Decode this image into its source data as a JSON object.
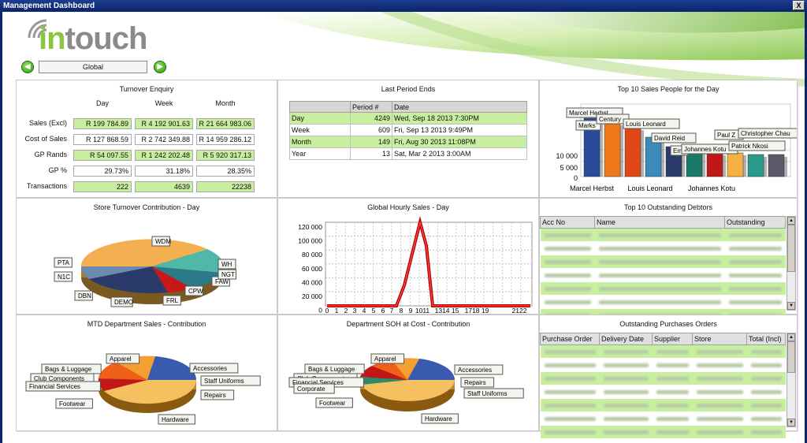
{
  "window": {
    "title": "Management Dashboard",
    "close_label": "X"
  },
  "logo": {
    "text_in": "in",
    "text_touch": "touch"
  },
  "nav": {
    "scope": "Global",
    "prev_icon": "arrow-left-icon",
    "next_icon": "arrow-right-icon"
  },
  "turnover": {
    "title": "Turnover Enquiry",
    "columns": [
      "Day",
      "Week",
      "Month"
    ],
    "rows": [
      {
        "label": "Sales (Excl)",
        "values": [
          "R 199 784.89",
          "R 4 192 901.63",
          "R 21 664 983.06"
        ],
        "style": "g"
      },
      {
        "label": "Cost of Sales",
        "values": [
          "R 127 868.59",
          "R 2 742 349.88",
          "R 14 959 286.12"
        ],
        "style": "w"
      },
      {
        "label": "GP Rands",
        "values": [
          "R 54 097.55",
          "R 1 242 202.48",
          "R 5 920 317.13"
        ],
        "style": "g"
      },
      {
        "label": "GP %",
        "values": [
          "29.73%",
          "31.18%",
          "28.35%"
        ],
        "style": "w"
      },
      {
        "label": "Transactions",
        "values": [
          "222",
          "4639",
          "22238"
        ],
        "style": "g"
      }
    ]
  },
  "last_period": {
    "title": "Last Period Ends",
    "headers": [
      "",
      "Period #",
      "Date"
    ],
    "rows": [
      {
        "name": "Day",
        "period": "4249",
        "date": "Wed, Sep 18 2013  7:30PM"
      },
      {
        "name": "Week",
        "period": "609",
        "date": "Fri, Sep 13 2013  9:49PM"
      },
      {
        "name": "Month",
        "period": "149",
        "date": "Fri, Aug 30 2013 11:08PM"
      },
      {
        "name": "Year",
        "period": "13",
        "date": "Sat, Mar  2 2013  3:00AM"
      }
    ]
  },
  "top_sales": {
    "title": "Top 10 Sales People for the Day",
    "labels": [
      "Marcel Herbst",
      "Marks",
      "Century",
      "Louis Leonard",
      "David Reid",
      "Ema",
      "Johannes Kotu",
      "Paul Z",
      "Christopher Chau",
      "Patrick Nkosi"
    ],
    "xlabels": [
      "Marcel Herbst",
      "Louis Leonard",
      "Johannes Kotu"
    ],
    "ticks": [
      "10 000",
      "5 000",
      "0"
    ]
  },
  "store_turnover": {
    "title": "Store Turnover Contribution - Day",
    "labels": [
      "WDM",
      "PTA",
      "N1C",
      "DBN",
      "DEMO",
      "FRL",
      "CPW",
      "FAW",
      "NGT",
      "WH"
    ]
  },
  "hourly": {
    "title": "Global Hourly Sales -  Day",
    "yticks": [
      "120 000",
      "100 000",
      "80 000",
      "60 000",
      "40 000",
      "20 000",
      "0"
    ],
    "xticks": [
      "0",
      "1",
      "2",
      "3",
      "4",
      "5",
      "6",
      "7",
      "8",
      "9",
      "1011",
      "1314 15",
      "1718 19",
      "2122"
    ]
  },
  "debtors": {
    "title": "Top 10 Outstanding Debtors",
    "headers": [
      "Acc No",
      "Name",
      "Outstanding"
    ]
  },
  "purchases": {
    "title": "Outstanding Purchases Orders",
    "headers": [
      "Purchase Order",
      "Delivery Date",
      "Supplier",
      "Store",
      "Total (Incl)"
    ]
  },
  "mtd_dept": {
    "title": "MTD Department Sales - Contribution",
    "labels": [
      "Apparel",
      "Bags & Luggage",
      "Club Components",
      "Financial Services",
      "Footwear",
      "Accessories",
      "Staff Uniforms",
      "Repairs",
      "Hardware"
    ]
  },
  "soh_dept": {
    "title": "Department SOH  at Cost - Contribution",
    "labels": [
      "Apparel",
      "Bags & Luggage",
      "Club Components",
      "Financial Services",
      "Corporate",
      "Footwear",
      "Accessories",
      "Repairs",
      "Staff Uniforms",
      "Hardware"
    ]
  },
  "colors": {
    "accent_green": "#c7ef9f",
    "title_blue": "#0a246a",
    "hourly_line": "#c00000"
  }
}
